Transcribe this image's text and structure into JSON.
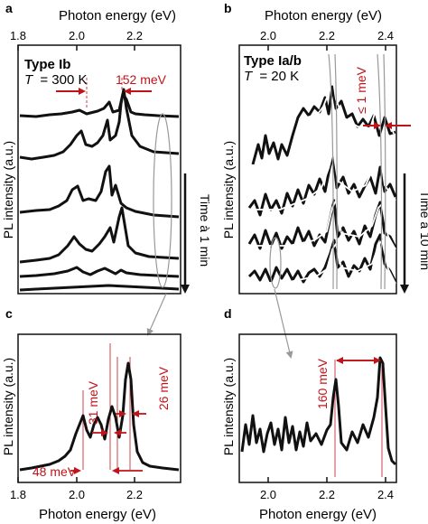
{
  "figure": {
    "panels": [
      {
        "letter": "a",
        "xlabel_top": "Photon energy (eV)",
        "ylabel": "PL intensity (a.u.)",
        "title_bold": "Type Ib",
        "temperature_symbol": "T",
        "temperature_value": "= 300 K",
        "annotation": "152 meV",
        "time_arrow_label": "Time à 1 min"
      },
      {
        "letter": "b",
        "xlabel_top": "Photon energy (eV)",
        "ylabel": "PL intensity (a.u.)",
        "title_bold": "Type Ia/b",
        "temperature_symbol": "T",
        "temperature_value": "= 20 K",
        "annotation": "≤ 1 meV",
        "time_arrow_label": "Time à 10 min"
      },
      {
        "letter": "c",
        "xlabel_bottom": "Photon energy (eV)",
        "ylabel": "PL intensity (a.u.)",
        "annotations": [
          "31 meV",
          "26 meV",
          "48 meV"
        ]
      },
      {
        "letter": "d",
        "xlabel_bottom": "Photon energy (eV)",
        "ylabel": "PL intensity (a.u.)",
        "annotation": "160 meV"
      }
    ],
    "colors": {
      "trace": "#111111",
      "fit": "#ffffff",
      "annotation": "#c0141a",
      "highlight": "#999999"
    }
  },
  "chart_data": [
    {
      "panel": "a",
      "type": "line",
      "xlim": [
        1.8,
        2.35
      ],
      "x_ticks": [
        "1.8",
        "2.0",
        "2.2"
      ],
      "series": [
        {
          "x": [
            1.9,
            2.0,
            2.05,
            2.12,
            2.17,
            2.22,
            2.32
          ],
          "y": [
            0.02,
            0.05,
            0.06,
            0.12,
            0.28,
            0.04,
            0.02
          ]
        },
        {
          "x": [
            1.9,
            2.0,
            2.05,
            2.12,
            2.17,
            2.22,
            2.32
          ],
          "y": [
            0.03,
            0.3,
            0.25,
            0.55,
            0.75,
            0.15,
            0.02
          ]
        },
        {
          "x": [
            1.9,
            2.0,
            2.05,
            2.12,
            2.17,
            2.22,
            2.32
          ],
          "y": [
            0.03,
            0.45,
            0.35,
            0.95,
            0.85,
            0.2,
            0.02
          ]
        },
        {
          "x": [
            1.9,
            2.0,
            2.05,
            2.12,
            2.17,
            2.22,
            2.32
          ],
          "y": [
            0.03,
            0.3,
            0.25,
            0.55,
            0.95,
            0.15,
            0.03
          ]
        },
        {
          "x": [
            1.9,
            2.0,
            2.05,
            2.12,
            2.17,
            2.22,
            2.32
          ],
          "y": [
            0.02,
            0.1,
            0.08,
            0.15,
            0.12,
            0.06,
            0.02
          ]
        },
        {
          "x": [
            1.9,
            2.0,
            2.05,
            2.12,
            2.17,
            2.22,
            2.32
          ],
          "y": [
            0.02,
            0.03,
            0.03,
            0.05,
            0.04,
            0.03,
            0.02
          ]
        }
      ]
    },
    {
      "panel": "b",
      "type": "line",
      "xlim": [
        1.9,
        2.46
      ],
      "x_ticks": [
        "2.0",
        "2.2",
        "2.4"
      ],
      "series": [
        {
          "x": [
            1.96,
            2.1,
            2.22,
            2.3,
            2.39,
            2.45
          ],
          "y": [
            0.1,
            0.25,
            1.0,
            0.35,
            0.7,
            0.15
          ]
        },
        {
          "x": [
            1.96,
            2.1,
            2.22,
            2.3,
            2.39,
            2.45
          ],
          "y": [
            0.1,
            0.2,
            0.9,
            0.3,
            0.8,
            0.15
          ]
        },
        {
          "x": [
            1.96,
            2.1,
            2.22,
            2.3,
            2.39,
            2.45
          ],
          "y": [
            0.1,
            0.2,
            0.85,
            0.3,
            0.85,
            0.15
          ]
        },
        {
          "x": [
            1.96,
            2.1,
            2.22,
            2.3,
            2.39,
            2.45
          ],
          "y": [
            0.1,
            0.2,
            0.8,
            0.35,
            0.85,
            0.15
          ]
        }
      ]
    },
    {
      "panel": "c",
      "type": "line",
      "xlim": [
        1.8,
        2.35
      ],
      "x_ticks": [
        "1.8",
        "2.0",
        "2.2"
      ],
      "series": [
        {
          "x": [
            1.85,
            1.95,
            2.02,
            2.06,
            2.12,
            2.15,
            2.17,
            2.2,
            2.3
          ],
          "y": [
            0.05,
            0.2,
            0.5,
            0.35,
            0.7,
            0.45,
            1.0,
            0.15,
            0.02
          ]
        }
      ]
    },
    {
      "panel": "d",
      "type": "line",
      "xlim": [
        1.9,
        2.46
      ],
      "x_ticks": [
        "2.0",
        "2.2",
        "2.4"
      ],
      "series": [
        {
          "x": [
            1.92,
            2.05,
            2.15,
            2.23,
            2.3,
            2.39,
            2.45
          ],
          "y": [
            0.15,
            0.12,
            0.1,
            0.6,
            0.12,
            1.0,
            0.08
          ]
        }
      ]
    }
  ]
}
